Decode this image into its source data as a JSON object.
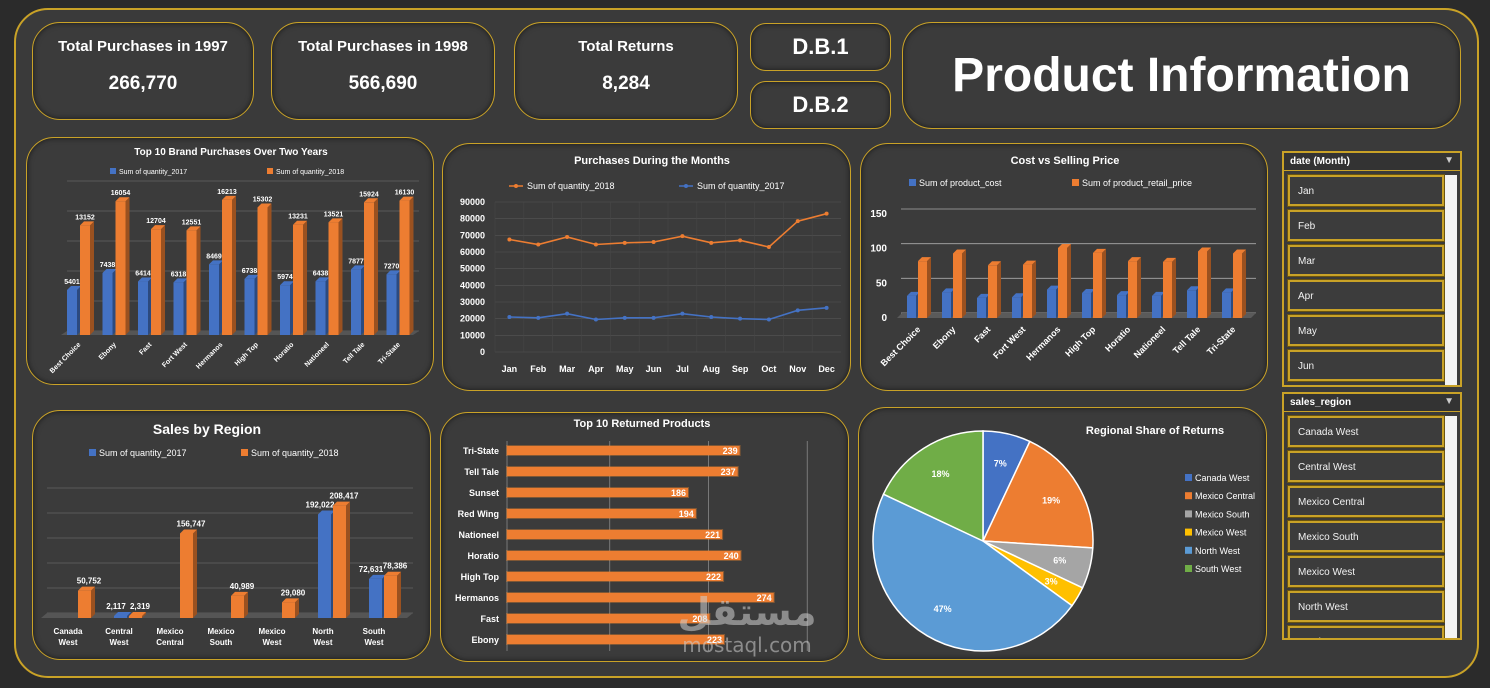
{
  "kpis": [
    {
      "title": "Total Purchases in 1997",
      "value": "266,770"
    },
    {
      "title": "Total Purchases in 1998",
      "value": "566,690"
    },
    {
      "title": "Total Returns",
      "value": "8,284"
    }
  ],
  "db_buttons": {
    "db1": "D.B.1",
    "db2": "D.B.2"
  },
  "page_title": "Product Information",
  "colors": {
    "blue": "#4472c4",
    "orange": "#ed7d31",
    "gold": "#c9a227"
  },
  "chart_data": [
    {
      "id": "brand",
      "type": "bar",
      "title": "Top 10 Brand Purchases Over Two Years",
      "categories": [
        "Best Choice",
        "Ebony",
        "Fast",
        "Fort West",
        "Hermanos",
        "High Top",
        "Horatio",
        "Nationeel",
        "Tell Tale",
        "Tri-State"
      ],
      "series": [
        {
          "name": "Sum of quantity_2017",
          "values": [
            5401,
            7438,
            6414,
            6318,
            8469,
            6738,
            5974,
            6438,
            7877,
            7270
          ]
        },
        {
          "name": "Sum of quantity_2018",
          "values": [
            13152,
            16054,
            12704,
            12551,
            16213,
            15302,
            13231,
            13521,
            15924,
            16130
          ]
        }
      ],
      "ylim": [
        0,
        18000
      ]
    },
    {
      "id": "months",
      "type": "line",
      "title": "Purchases During the Months",
      "categories": [
        "Jan",
        "Feb",
        "Mar",
        "Apr",
        "May",
        "Jun",
        "Jul",
        "Aug",
        "Sep",
        "Oct",
        "Nov",
        "Dec"
      ],
      "series": [
        {
          "name": "Sum of quantity_2018",
          "values": [
            67500,
            64500,
            69000,
            64500,
            65500,
            66000,
            69500,
            65500,
            67000,
            63000,
            78500,
            83000
          ]
        },
        {
          "name": "Sum of quantity_2017",
          "values": [
            21000,
            20500,
            23000,
            19500,
            20500,
            20500,
            23000,
            21000,
            20000,
            19500,
            25000,
            26500
          ]
        }
      ],
      "yticks": [
        "0",
        "10000",
        "20000",
        "30000",
        "40000",
        "50000",
        "60000",
        "70000",
        "80000",
        "90000"
      ],
      "ylim": [
        0,
        90000
      ]
    },
    {
      "id": "cost",
      "type": "bar",
      "title": "Cost vs Selling Price",
      "categories": [
        "Best Choice",
        "Ebony",
        "Fast",
        "Fort West",
        "Hermanos",
        "High Top",
        "Horatio",
        "Nationeel",
        "Tell Tale",
        "Tri-State"
      ],
      "series": [
        {
          "name": "Sum of product_cost",
          "values": [
            32,
            37,
            29,
            30,
            41,
            36,
            33,
            32,
            40,
            37
          ]
        },
        {
          "name": "Sum of product_retail_price",
          "values": [
            82,
            93,
            76,
            77,
            101,
            94,
            82,
            81,
            96,
            93
          ]
        }
      ],
      "yticks": [
        "0",
        "50",
        "100",
        "150"
      ],
      "ylim": [
        0,
        150
      ]
    },
    {
      "id": "region",
      "type": "bar",
      "title": "Sales by Region",
      "categories": [
        "Canada West",
        "Central West",
        "Mexico Central",
        "Mexico South",
        "Mexico West",
        "North West",
        "South West"
      ],
      "category_lines": [
        [
          "Canada",
          "West"
        ],
        [
          "Central",
          "West"
        ],
        [
          "Mexico",
          "Central"
        ],
        [
          "Mexico",
          "South"
        ],
        [
          "Mexico",
          "West"
        ],
        [
          "North",
          "West"
        ],
        [
          "South",
          "West"
        ]
      ],
      "series": [
        {
          "name": "Sum of quantity_2017",
          "values": [
            null,
            2117,
            null,
            null,
            null,
            192022,
            72631
          ],
          "labels": [
            "",
            "2,117",
            "",
            "",
            "",
            "192,022",
            "72,631"
          ]
        },
        {
          "name": "Sum of quantity_2018",
          "values": [
            50752,
            2319,
            156747,
            40989,
            29080,
            208417,
            78386
          ],
          "labels": [
            "50,752",
            "2,319",
            "156,747",
            "40,989",
            "29,080",
            "208,417",
            "78,386"
          ]
        }
      ],
      "ylim": [
        0,
        230000
      ]
    },
    {
      "id": "returns",
      "type": "bar",
      "orientation": "horizontal",
      "title": "Top 10 Returned Products",
      "categories": [
        "Tri-State",
        "Tell Tale",
        "Sunset",
        "Red Wing",
        "Nationeel",
        "Horatio",
        "High Top",
        "Hermanos",
        "Fast",
        "Ebony"
      ],
      "values": [
        239,
        237,
        186,
        194,
        221,
        240,
        222,
        274,
        208,
        223
      ],
      "xlim": [
        0,
        300
      ]
    },
    {
      "id": "share",
      "type": "pie",
      "title": "Regional Share of Returns",
      "labels": [
        "Canada West",
        "Mexico Central",
        "Mexico South",
        "Mexico West",
        "North West",
        "South West"
      ],
      "values": [
        7,
        19,
        6,
        3,
        47,
        18
      ],
      "value_labels": [
        "7%",
        "19%",
        "6%",
        "3%",
        "47%",
        "18%"
      ],
      "colors": [
        "#4472c4",
        "#ed7d31",
        "#a5a5a5",
        "#ffc000",
        "#5b9bd5",
        "#70ad47"
      ]
    }
  ],
  "slicers": {
    "month": {
      "title": "date (Month)",
      "items": [
        "Jan",
        "Feb",
        "Mar",
        "Apr",
        "May",
        "Jun"
      ]
    },
    "region": {
      "title": "sales_region",
      "items": [
        "Canada West",
        "Central West",
        "Mexico Central",
        "Mexico South",
        "Mexico West",
        "North West",
        "South West"
      ]
    }
  },
  "watermark": {
    "arabic": "مستقل",
    "latin": "mostaql.com"
  }
}
